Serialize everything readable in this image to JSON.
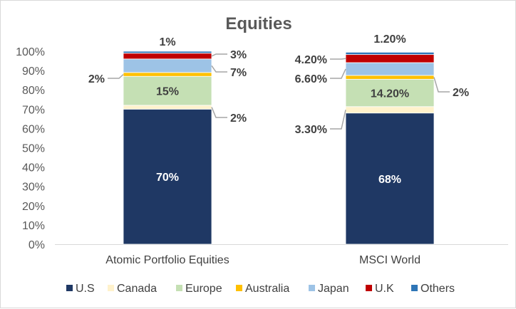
{
  "chart_data": {
    "type": "bar",
    "stacked": true,
    "title": "Equities",
    "categories": [
      "Atomic Portfolio Equities",
      "MSCI World"
    ],
    "ylim": [
      0,
      100
    ],
    "y_ticks": [
      "0%",
      "10%",
      "20%",
      "30%",
      "40%",
      "50%",
      "60%",
      "70%",
      "80%",
      "90%",
      "100%"
    ],
    "grid": false,
    "legend_position": "bottom",
    "series": [
      {
        "name": "U.S",
        "color": "#1f3864",
        "values": [
          70,
          68
        ],
        "labels": [
          "70%",
          "68%"
        ]
      },
      {
        "name": "Canada",
        "color": "#fff2cc",
        "values": [
          2,
          3.3
        ],
        "labels": [
          "2%",
          "3.30%"
        ]
      },
      {
        "name": "Europe",
        "color": "#c5e0b4",
        "values": [
          15,
          14.2
        ],
        "labels": [
          "15%",
          "14.20%"
        ]
      },
      {
        "name": "Australia",
        "color": "#ffc000",
        "values": [
          2,
          2
        ],
        "labels": [
          "2%",
          "2%"
        ]
      },
      {
        "name": "Japan",
        "color": "#9dc3e6",
        "values": [
          7,
          6.6
        ],
        "labels": [
          "7%",
          "6.60%"
        ]
      },
      {
        "name": "U.K",
        "color": "#c00000",
        "values": [
          3,
          4.2
        ],
        "labels": [
          "3%",
          "4.20%"
        ]
      },
      {
        "name": "Others",
        "color": "#2e75b6",
        "values": [
          1,
          1.2
        ],
        "labels": [
          "1%",
          "1.20%"
        ]
      }
    ]
  }
}
